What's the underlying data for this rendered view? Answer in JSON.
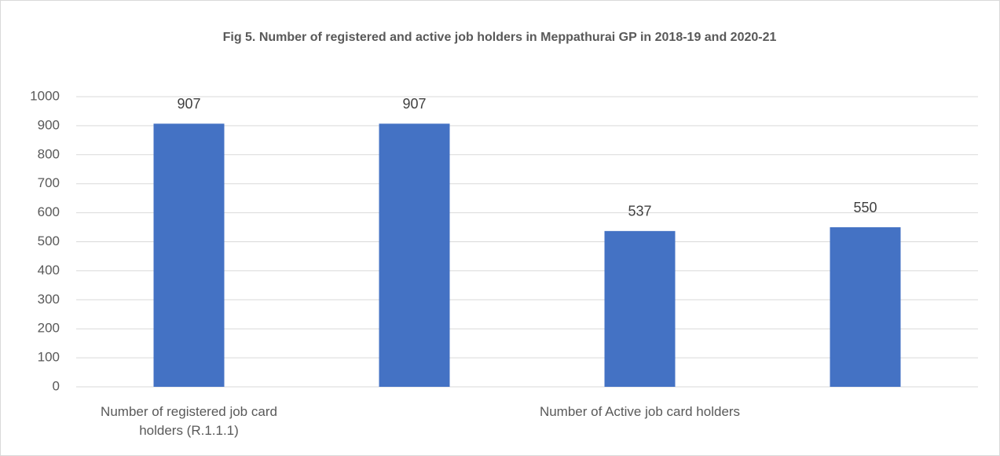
{
  "chart_data": {
    "type": "bar",
    "title": "Fig 5. Number of registered and active job holders in Meppathurai GP in 2018-19 and 2020-21",
    "categories": [
      "Number of registered job card holders (R.1.1.1)",
      null,
      "Number of Active job card holders",
      null
    ],
    "values": [
      907,
      907,
      537,
      550
    ],
    "color": "#4472c4",
    "ylim": [
      0,
      1000
    ],
    "yticks": [
      0,
      100,
      200,
      300,
      400,
      500,
      600,
      700,
      800,
      900,
      1000
    ],
    "grid": true
  }
}
